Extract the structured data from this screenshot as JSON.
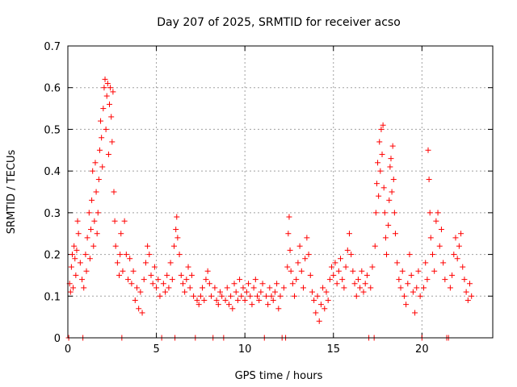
{
  "chart_data": {
    "type": "scatter",
    "title": "Day 207 of 2025, SRMTID for receiver acso",
    "xlabel": "GPS time / hours",
    "ylabel": "SRMTID / TECUs",
    "xlim": [
      0,
      24
    ],
    "ylim": [
      0,
      0.7
    ],
    "xticks": [
      0,
      5,
      10,
      15,
      20
    ],
    "yticks": [
      0,
      0.1,
      0.2,
      0.3,
      0.4,
      0.5,
      0.6,
      0.7
    ],
    "xtick_labels": [
      "0",
      "5",
      "10",
      "15",
      "20"
    ],
    "ytick_labels": [
      "0",
      "0.1",
      "0.2",
      "0.3",
      "0.4",
      "0.5",
      "0.6",
      "0.7"
    ],
    "grid": true,
    "marker": "plus",
    "color": "#ff0000",
    "series": [
      {
        "name": "SRMTID",
        "points": [
          [
            0.05,
            0.0
          ],
          [
            0.1,
            0.13
          ],
          [
            0.15,
            0.11
          ],
          [
            0.2,
            0.17
          ],
          [
            0.25,
            0.2
          ],
          [
            0.3,
            0.12
          ],
          [
            0.35,
            0.22
          ],
          [
            0.4,
            0.19
          ],
          [
            0.45,
            0.15
          ],
          [
            0.5,
            0.21
          ],
          [
            0.55,
            0.28
          ],
          [
            0.6,
            0.25
          ],
          [
            0.7,
            0.18
          ],
          [
            0.8,
            0.14
          ],
          [
            0.85,
            0.0
          ],
          [
            0.9,
            0.12
          ],
          [
            1.0,
            0.2
          ],
          [
            1.05,
            0.16
          ],
          [
            1.1,
            0.24
          ],
          [
            1.2,
            0.3
          ],
          [
            1.25,
            0.19
          ],
          [
            1.3,
            0.26
          ],
          [
            1.35,
            0.33
          ],
          [
            1.4,
            0.4
          ],
          [
            1.45,
            0.22
          ],
          [
            1.5,
            0.28
          ],
          [
            1.55,
            0.42
          ],
          [
            1.6,
            0.35
          ],
          [
            1.65,
            0.25
          ],
          [
            1.7,
            0.3
          ],
          [
            1.75,
            0.38
          ],
          [
            1.8,
            0.45
          ],
          [
            1.85,
            0.52
          ],
          [
            1.9,
            0.48
          ],
          [
            1.95,
            0.41
          ],
          [
            2.0,
            0.55
          ],
          [
            2.05,
            0.6
          ],
          [
            2.1,
            0.62
          ],
          [
            2.15,
            0.5
          ],
          [
            2.2,
            0.58
          ],
          [
            2.25,
            0.61
          ],
          [
            2.3,
            0.44
          ],
          [
            2.35,
            0.56
          ],
          [
            2.4,
            0.6
          ],
          [
            2.45,
            0.53
          ],
          [
            2.5,
            0.47
          ],
          [
            2.55,
            0.59
          ],
          [
            2.6,
            0.35
          ],
          [
            2.65,
            0.28
          ],
          [
            2.7,
            0.22
          ],
          [
            2.8,
            0.18
          ],
          [
            2.9,
            0.15
          ],
          [
            2.95,
            0.2
          ],
          [
            3.0,
            0.25
          ],
          [
            3.05,
            0.0
          ],
          [
            3.1,
            0.16
          ],
          [
            3.2,
            0.28
          ],
          [
            3.3,
            0.2
          ],
          [
            3.4,
            0.14
          ],
          [
            3.5,
            0.19
          ],
          [
            3.6,
            0.13
          ],
          [
            3.7,
            0.16
          ],
          [
            3.8,
            0.09
          ],
          [
            3.9,
            0.12
          ],
          [
            4.0,
            0.07
          ],
          [
            4.1,
            0.11
          ],
          [
            4.2,
            0.06
          ],
          [
            4.3,
            0.14
          ],
          [
            4.4,
            0.18
          ],
          [
            4.5,
            0.22
          ],
          [
            4.6,
            0.2
          ],
          [
            4.7,
            0.15
          ],
          [
            4.8,
            0.13
          ],
          [
            4.9,
            0.17
          ],
          [
            5.0,
            0.12
          ],
          [
            5.1,
            0.14
          ],
          [
            5.2,
            0.1
          ],
          [
            5.3,
            0.0
          ],
          [
            5.4,
            0.13
          ],
          [
            5.5,
            0.11
          ],
          [
            5.6,
            0.15
          ],
          [
            5.7,
            0.12
          ],
          [
            5.8,
            0.18
          ],
          [
            5.9,
            0.14
          ],
          [
            6.0,
            0.22
          ],
          [
            6.05,
            0.0
          ],
          [
            6.1,
            0.26
          ],
          [
            6.15,
            0.29
          ],
          [
            6.2,
            0.24
          ],
          [
            6.3,
            0.2
          ],
          [
            6.4,
            0.15
          ],
          [
            6.5,
            0.13
          ],
          [
            6.6,
            0.11
          ],
          [
            6.7,
            0.14
          ],
          [
            6.8,
            0.17
          ],
          [
            6.9,
            0.12
          ],
          [
            7.0,
            0.15
          ],
          [
            7.1,
            0.1
          ],
          [
            7.2,
            0.0
          ],
          [
            7.3,
            0.09
          ],
          [
            7.4,
            0.08
          ],
          [
            7.5,
            0.1
          ],
          [
            7.6,
            0.12
          ],
          [
            7.7,
            0.09
          ],
          [
            7.8,
            0.14
          ],
          [
            7.9,
            0.16
          ],
          [
            8.0,
            0.13
          ],
          [
            8.1,
            0.1
          ],
          [
            8.2,
            0.0
          ],
          [
            8.3,
            0.12
          ],
          [
            8.4,
            0.09
          ],
          [
            8.5,
            0.08
          ],
          [
            8.6,
            0.11
          ],
          [
            8.7,
            0.1
          ],
          [
            8.8,
            0.0
          ],
          [
            8.9,
            0.09
          ],
          [
            9.0,
            0.12
          ],
          [
            9.1,
            0.08
          ],
          [
            9.2,
            0.1
          ],
          [
            9.3,
            0.07
          ],
          [
            9.4,
            0.13
          ],
          [
            9.5,
            0.11
          ],
          [
            9.6,
            0.09
          ],
          [
            9.7,
            0.14
          ],
          [
            9.8,
            0.1
          ],
          [
            9.9,
            0.12
          ],
          [
            10.0,
            0.09
          ],
          [
            10.1,
            0.11
          ],
          [
            10.2,
            0.13
          ],
          [
            10.3,
            0.1
          ],
          [
            10.4,
            0.08
          ],
          [
            10.5,
            0.12
          ],
          [
            10.6,
            0.14
          ],
          [
            10.7,
            0.1
          ],
          [
            10.8,
            0.09
          ],
          [
            10.9,
            0.11
          ],
          [
            11.0,
            0.13
          ],
          [
            11.1,
            0.0
          ],
          [
            11.2,
            0.1
          ],
          [
            11.3,
            0.08
          ],
          [
            11.4,
            0.12
          ],
          [
            11.5,
            0.1
          ],
          [
            11.6,
            0.09
          ],
          [
            11.7,
            0.11
          ],
          [
            11.8,
            0.13
          ],
          [
            11.9,
            0.07
          ],
          [
            12.0,
            0.1
          ],
          [
            12.1,
            0.0
          ],
          [
            12.2,
            0.12
          ],
          [
            12.3,
            0.0
          ],
          [
            12.4,
            0.17
          ],
          [
            12.45,
            0.25
          ],
          [
            12.5,
            0.29
          ],
          [
            12.55,
            0.21
          ],
          [
            12.6,
            0.16
          ],
          [
            12.7,
            0.13
          ],
          [
            12.8,
            0.1
          ],
          [
            12.9,
            0.14
          ],
          [
            13.0,
            0.18
          ],
          [
            13.1,
            0.22
          ],
          [
            13.2,
            0.16
          ],
          [
            13.3,
            0.12
          ],
          [
            13.4,
            0.19
          ],
          [
            13.5,
            0.24
          ],
          [
            13.6,
            0.2
          ],
          [
            13.7,
            0.15
          ],
          [
            13.8,
            0.11
          ],
          [
            13.9,
            0.09
          ],
          [
            14.0,
            0.06
          ],
          [
            14.1,
            0.1
          ],
          [
            14.2,
            0.04
          ],
          [
            14.3,
            0.08
          ],
          [
            14.4,
            0.12
          ],
          [
            14.5,
            0.07
          ],
          [
            14.6,
            0.11
          ],
          [
            14.7,
            0.09
          ],
          [
            14.8,
            0.14
          ],
          [
            14.9,
            0.17
          ],
          [
            15.0,
            0.15
          ],
          [
            15.1,
            0.18
          ],
          [
            15.2,
            0.13
          ],
          [
            15.3,
            0.16
          ],
          [
            15.4,
            0.19
          ],
          [
            15.5,
            0.14
          ],
          [
            15.6,
            0.12
          ],
          [
            15.7,
            0.17
          ],
          [
            15.8,
            0.21
          ],
          [
            15.9,
            0.25
          ],
          [
            16.0,
            0.2
          ],
          [
            16.1,
            0.16
          ],
          [
            16.2,
            0.13
          ],
          [
            16.3,
            0.1
          ],
          [
            16.4,
            0.14
          ],
          [
            16.5,
            0.12
          ],
          [
            16.6,
            0.16
          ],
          [
            16.7,
            0.11
          ],
          [
            16.8,
            0.13
          ],
          [
            16.9,
            0.15
          ],
          [
            17.0,
            0.0
          ],
          [
            17.1,
            0.12
          ],
          [
            17.2,
            0.17
          ],
          [
            17.3,
            0.0
          ],
          [
            17.35,
            0.22
          ],
          [
            17.4,
            0.3
          ],
          [
            17.45,
            0.37
          ],
          [
            17.5,
            0.42
          ],
          [
            17.55,
            0.34
          ],
          [
            17.6,
            0.47
          ],
          [
            17.65,
            0.4
          ],
          [
            17.7,
            0.5
          ],
          [
            17.75,
            0.44
          ],
          [
            17.8,
            0.51
          ],
          [
            17.85,
            0.36
          ],
          [
            17.9,
            0.3
          ],
          [
            17.95,
            0.24
          ],
          [
            18.0,
            0.2
          ],
          [
            18.1,
            0.27
          ],
          [
            18.15,
            0.33
          ],
          [
            18.2,
            0.41
          ],
          [
            18.25,
            0.43
          ],
          [
            18.3,
            0.35
          ],
          [
            18.35,
            0.46
          ],
          [
            18.4,
            0.38
          ],
          [
            18.45,
            0.3
          ],
          [
            18.5,
            0.25
          ],
          [
            18.6,
            0.18
          ],
          [
            18.7,
            0.14
          ],
          [
            18.8,
            0.12
          ],
          [
            18.9,
            0.16
          ],
          [
            19.0,
            0.1
          ],
          [
            19.1,
            0.08
          ],
          [
            19.2,
            0.13
          ],
          [
            19.3,
            0.2
          ],
          [
            19.4,
            0.15
          ],
          [
            19.5,
            0.11
          ],
          [
            19.6,
            0.06
          ],
          [
            19.7,
            0.12
          ],
          [
            19.8,
            0.16
          ],
          [
            19.9,
            0.1
          ],
          [
            20.0,
            0.0
          ],
          [
            20.1,
            0.12
          ],
          [
            20.2,
            0.18
          ],
          [
            20.3,
            0.14
          ],
          [
            20.35,
            0.45
          ],
          [
            20.4,
            0.38
          ],
          [
            20.45,
            0.3
          ],
          [
            20.5,
            0.24
          ],
          [
            20.6,
            0.2
          ],
          [
            20.7,
            0.16
          ],
          [
            20.8,
            0.28
          ],
          [
            20.9,
            0.3
          ],
          [
            21.0,
            0.22
          ],
          [
            21.1,
            0.26
          ],
          [
            21.2,
            0.18
          ],
          [
            21.3,
            0.14
          ],
          [
            21.4,
            0.0
          ],
          [
            21.5,
            0.0
          ],
          [
            21.6,
            0.12
          ],
          [
            21.7,
            0.15
          ],
          [
            21.8,
            0.2
          ],
          [
            21.9,
            0.24
          ],
          [
            22.0,
            0.19
          ],
          [
            22.1,
            0.22
          ],
          [
            22.2,
            0.25
          ],
          [
            22.3,
            0.17
          ],
          [
            22.4,
            0.14
          ],
          [
            22.5,
            0.11
          ],
          [
            22.6,
            0.09
          ],
          [
            22.7,
            0.13
          ],
          [
            22.8,
            0.1
          ]
        ]
      }
    ]
  }
}
